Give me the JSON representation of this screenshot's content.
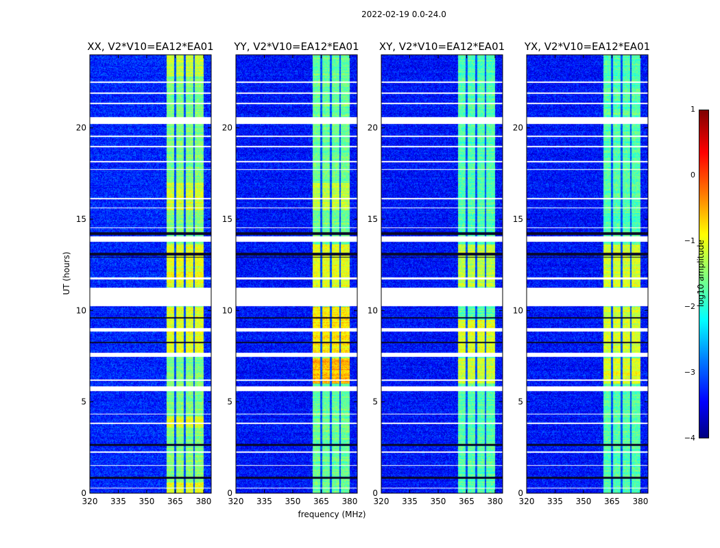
{
  "suptitle": "2022-02-19 0.0-24.0",
  "xlabel": "frequency (MHz)",
  "ylabel": "UT (hours)",
  "colorbar": {
    "label": "log10 amplitude",
    "ticks": [
      "1",
      "0",
      "−1",
      "−2",
      "−3",
      "−4"
    ],
    "range": [
      -4,
      1
    ],
    "colormap": "jet"
  },
  "chart_data": {
    "type": "heatmap",
    "title": "2022-02-19 0.0-24.0",
    "xlabel": "frequency (MHz)",
    "ylabel": "UT (hours)",
    "xlim": [
      320,
      384
    ],
    "ylim": [
      0,
      24
    ],
    "xticks": [
      "320",
      "335",
      "350",
      "365",
      "380"
    ],
    "yticks": [
      "0",
      "5",
      "10",
      "15",
      "20"
    ],
    "zlabel": "log10 amplitude",
    "zlim": [
      -4,
      1
    ],
    "panels": [
      {
        "title": "XX, V2*V10=EA12*EA01",
        "background_level": -3.2,
        "band_level": -1.5,
        "bright_segments": [
          [
            11.3,
            13.6,
            -1.0
          ],
          [
            7.7,
            10.2,
            -1.0
          ],
          [
            3.6,
            4.2,
            -1.0
          ],
          [
            15.5,
            17.0,
            -1.1
          ],
          [
            22.8,
            24,
            -1.2
          ],
          [
            0,
            0.6,
            -1.0
          ]
        ]
      },
      {
        "title": "YY, V2*V10=EA12*EA01",
        "background_level": -3.3,
        "band_level": -1.6,
        "bright_segments": [
          [
            11.3,
            13.6,
            -1.0
          ],
          [
            7.7,
            10.2,
            -0.8
          ],
          [
            6.0,
            7.4,
            -0.5
          ],
          [
            15.5,
            17.0,
            -1.2
          ]
        ]
      },
      {
        "title": "XY, V2*V10=EA12*EA01",
        "background_level": -3.3,
        "band_level": -1.7,
        "bright_segments": [
          [
            11.3,
            13.6,
            -1.2
          ],
          [
            7.7,
            9.5,
            -1.0
          ],
          [
            6.0,
            7.4,
            -1.1
          ]
        ]
      },
      {
        "title": "YX, V2*V10=EA12*EA01",
        "background_level": -3.3,
        "band_level": -1.7,
        "bright_segments": [
          [
            11.3,
            13.6,
            -1.1
          ],
          [
            7.7,
            10.2,
            -1.1
          ],
          [
            6.0,
            7.4,
            -1.0
          ]
        ]
      }
    ],
    "band_MHz": [
      360.5,
      380
    ],
    "dark_channels_MHz": [
      365,
      370,
      375
    ],
    "flagged_hours": [
      [
        10.25,
        11.25
      ],
      [
        20.2,
        20.6
      ],
      [
        13.75,
        14.05
      ],
      [
        5.6,
        5.85
      ],
      [
        7.45,
        7.7
      ],
      [
        8.85,
        9.05
      ],
      [
        22.45,
        22.55
      ],
      [
        21.85,
        21.93
      ],
      [
        21.3,
        21.37
      ],
      [
        19.5,
        19.57
      ],
      [
        18.95,
        19.0
      ],
      [
        18.1,
        18.17
      ],
      [
        17.7,
        17.75
      ],
      [
        16.1,
        16.17
      ],
      [
        15.6,
        15.65
      ],
      [
        14.5,
        14.55
      ],
      [
        11.7,
        11.8
      ],
      [
        4.3,
        4.36
      ],
      [
        3.8,
        3.86
      ],
      [
        2.2,
        2.27
      ],
      [
        1.5,
        1.55
      ],
      [
        0.25,
        0.3
      ],
      [
        6.15,
        6.22
      ]
    ],
    "low_hours": [
      [
        13.0,
        13.15
      ],
      [
        12.9,
        12.95
      ],
      [
        9.55,
        9.65
      ],
      [
        8.2,
        8.3
      ],
      [
        2.6,
        2.7
      ],
      [
        0.8,
        0.9
      ],
      [
        14.15,
        14.3
      ]
    ]
  }
}
